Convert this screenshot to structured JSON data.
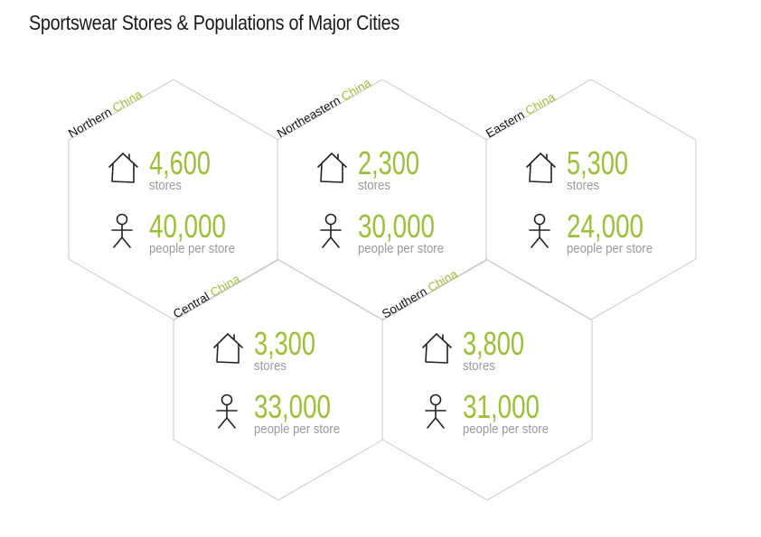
{
  "title": "Sportswear Stores & Populations of Major Cities",
  "regions": [
    {
      "name": "Northern",
      "accent": "China",
      "stores": "4,600",
      "stores_label": "stores",
      "people": "40,000",
      "people_label": "people per store"
    },
    {
      "name": "Northeastern",
      "accent": "China",
      "stores": "2,300",
      "stores_label": "stores",
      "people": "30,000",
      "people_label": "people per store"
    },
    {
      "name": "Eastern",
      "accent": "China",
      "stores": "5,300",
      "stores_label": "stores",
      "people": "24,000",
      "people_label": "people per store"
    },
    {
      "name": "Central",
      "accent": "China",
      "stores": "3,300",
      "stores_label": "stores",
      "people": "33,000",
      "people_label": "people per store"
    },
    {
      "name": "Southern",
      "accent": "China",
      "stores": "3,800",
      "stores_label": "stores",
      "people": "31,000",
      "people_label": "people per store"
    }
  ],
  "colors": {
    "accent": "#9cbf3b",
    "outline": "#c9c9c9",
    "muted": "#9a9a9a",
    "ink": "#111111"
  },
  "icons": {
    "stores": "house-icon",
    "people": "person-icon"
  }
}
